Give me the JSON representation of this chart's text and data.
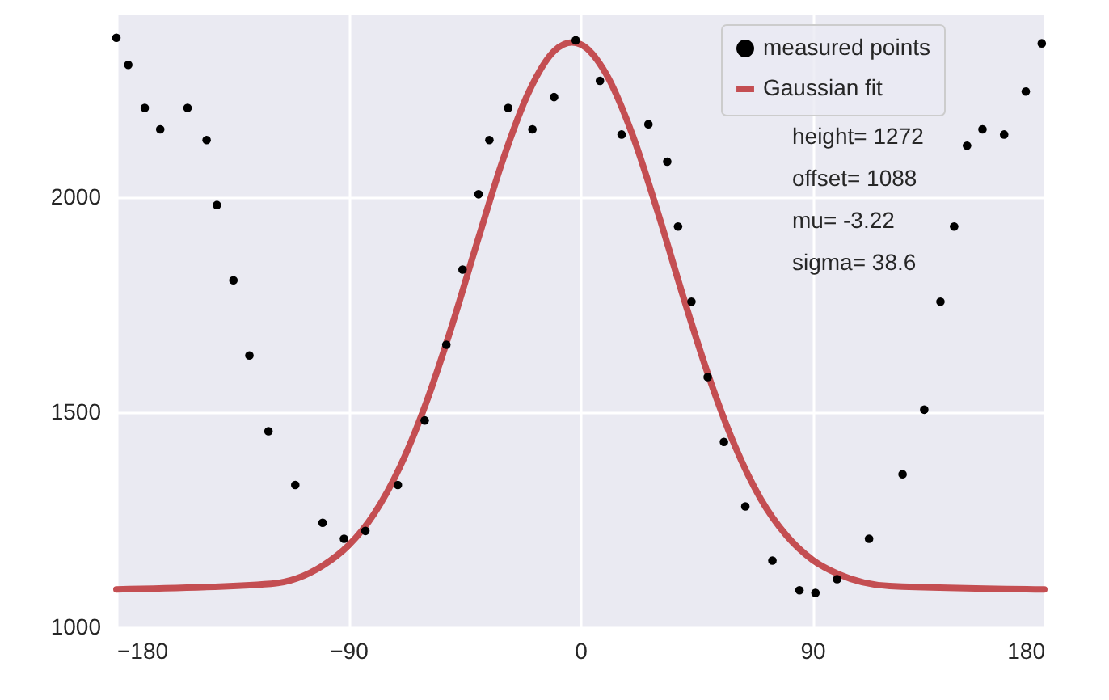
{
  "chart_data": {
    "type": "scatter",
    "xlim": [
      -180,
      180
    ],
    "ylim": [
      1000,
      2425
    ],
    "xticks": [
      {
        "value": -180,
        "label": "−180"
      },
      {
        "value": -90,
        "label": "−90"
      },
      0,
      90,
      180
    ],
    "yticks": [
      1000,
      1500,
      2000
    ],
    "grid": true,
    "legend": "top right",
    "annotations": [
      "height= 1272",
      "offset= 1088",
      "mu= -3.22",
      "sigma= 38.6"
    ],
    "series": [
      {
        "name": "measured points",
        "color": "#000000",
        "marker": "circle",
        "x": [
          -180,
          -175.4,
          -169,
          -163,
          -152.4,
          -145,
          -141,
          -134.6,
          -128.4,
          -121,
          -110.6,
          -100,
          -91.7,
          -83.4,
          -70.8,
          -60.4,
          -52,
          -45.7,
          -39.5,
          -35.3,
          -28,
          -18.6,
          -10.2,
          -1.8,
          7.6,
          16,
          26.4,
          33.7,
          37.9,
          43.1,
          49.4,
          55.7,
          64,
          74.5,
          85,
          91.2,
          99.6,
          112,
          125,
          133.4,
          139.7,
          145,
          150,
          156,
          164.4,
          172.8,
          179
        ],
        "values": [
          2371,
          2308,
          2208,
          2158,
          2208,
          2133,
          1982,
          1807,
          1632,
          1456,
          1331,
          1243,
          1206,
          1224,
          1331,
          1481,
          1657,
          1832,
          2007,
          2133,
          2208,
          2158,
          2233,
          2365,
          2271,
          2146,
          2170,
          2083,
          1932,
          1757,
          1582,
          1431,
          1281,
          1155,
          1086,
          1080,
          1112,
          1206,
          1356,
          1506,
          1757,
          1932,
          2120,
          2158,
          2146,
          2246,
          2358
        ]
      },
      {
        "name": "Gaussian fit",
        "type": "line",
        "color": "#c44e52",
        "x": [
          -180,
          -120,
          -100,
          -90,
          -80,
          -70,
          -60,
          -50,
          -40,
          -30,
          -20,
          -10,
          -3.22,
          0,
          10,
          20,
          30,
          40,
          50,
          60,
          70,
          80,
          90,
          100,
          120,
          180
        ],
        "values": [
          1088,
          1101,
          1143,
          1190,
          1264,
          1373,
          1519,
          1698,
          1896,
          2088,
          2245,
          2341,
          2360,
          2356,
          2287,
          2149,
          1966,
          1767,
          1580,
          1421,
          1298,
          1213,
          1157,
          1124,
          1096,
          1088
        ]
      }
    ]
  }
}
